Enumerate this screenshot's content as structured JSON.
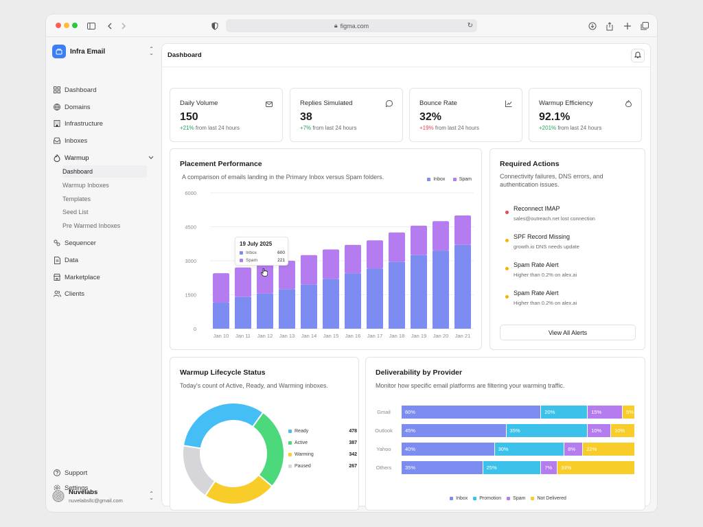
{
  "browser": {
    "url": "figma.com"
  },
  "brand": {
    "name": "Infra Email"
  },
  "nav": [
    {
      "label": "Dashboard",
      "icon": "grid-icon"
    },
    {
      "label": "Domains",
      "icon": "globe-icon"
    },
    {
      "label": "Infrastructure",
      "icon": "building-icon"
    },
    {
      "label": "Inboxes",
      "icon": "inbox-icon"
    },
    {
      "label": "Warmup",
      "icon": "flame-icon"
    }
  ],
  "warmup_sub": [
    "Dashboard",
    "Warmup Inboxes",
    "Templates",
    "Seed List",
    "Pre Warmed Inboxes"
  ],
  "nav2": [
    {
      "label": "Sequencer",
      "icon": "sequencer-icon"
    },
    {
      "label": "Data",
      "icon": "document-icon"
    },
    {
      "label": "Marketplace",
      "icon": "store-icon"
    },
    {
      "label": "Clients",
      "icon": "users-icon"
    }
  ],
  "footer_nav": [
    {
      "label": "Support",
      "icon": "help-icon"
    },
    {
      "label": "Settings",
      "icon": "gear-icon"
    }
  ],
  "user": {
    "name": "Nuvelabs",
    "email": "nuvelabsllc@gmail.com"
  },
  "header": {
    "title": "Dashboard"
  },
  "stats": [
    {
      "title": "Daily Volume",
      "value": "150",
      "delta": "+21%",
      "dir": "up",
      "suffix": "from last 24 hours",
      "icon": "mail-icon"
    },
    {
      "title": "Replies Simulated",
      "value": "38",
      "delta": "+7%",
      "dir": "up",
      "suffix": "from last 24 hours",
      "icon": "chat-icon"
    },
    {
      "title": "Bounce Rate",
      "value": "32%",
      "delta": "+19%",
      "dir": "down",
      "suffix": "from last 24 hours",
      "icon": "chart-icon"
    },
    {
      "title": "Warmup Efficiency",
      "value": "92.1%",
      "delta": "+201%",
      "dir": "up",
      "suffix": "from last 24 hours",
      "icon": "flame-icon"
    }
  ],
  "placement": {
    "title": "Placement Performance",
    "desc": "A comparison of emails landing in the Primary Inbox versus Spam folders.",
    "tooltip": {
      "date": "19 July 2025",
      "inbox_label": "Inbox",
      "inbox_value": "600",
      "spam_label": "Spam",
      "spam_value": "221"
    }
  },
  "actions": {
    "title": "Required Actions",
    "desc": "Connectivity failures, DNS errors, and authentication issues.",
    "items": [
      {
        "title": "Reconnect IMAP",
        "sub": "sales@outreach.net lost connection",
        "color": "#e5484d"
      },
      {
        "title": "SPF Record Missing",
        "sub": "growth.io DNS needs update",
        "color": "#f5b400"
      },
      {
        "title": "Spam Rate Alert",
        "sub": "Higher than 0.2% on alex.ai",
        "color": "#f5b400"
      },
      {
        "title": "Spam Rate Alert",
        "sub": "Higher than 0.2% on alex.ai",
        "color": "#f5b400"
      }
    ],
    "button": "View All Alerts"
  },
  "lifecycle": {
    "title": "Warmup Lifecycle Status",
    "desc": "Today's count of Active, Ready, and Warming inboxes."
  },
  "deliverability": {
    "title": "Deliverability by Provider",
    "desc": "Monitor how specific email platforms are filtering your warming traffic."
  },
  "colors": {
    "inbox": "#7d8cf0",
    "spam": "#b57cf0",
    "ready": "#45bdf5",
    "active": "#4cd97b",
    "warming": "#f8cd2a",
    "paused": "#d6d6da",
    "promotion": "#3cc2ea",
    "not_delivered": "#f8cd2a"
  },
  "chart_data": [
    {
      "type": "bar",
      "stacked": true,
      "categories": [
        "Jan 10",
        "Jan 11",
        "Jan 12",
        "Jan 13",
        "Jan 14",
        "Jan 15",
        "Jan 16",
        "Jan 17",
        "Jan 18",
        "Jan 19",
        "Jan 20",
        "Jan 21"
      ],
      "series": [
        {
          "name": "Inbox",
          "values": [
            1150,
            1400,
            1550,
            1750,
            1950,
            2200,
            2450,
            2650,
            2950,
            3250,
            3450,
            3700
          ]
        },
        {
          "name": "Spam",
          "values": [
            1300,
            1300,
            1300,
            1250,
            1300,
            1300,
            1250,
            1250,
            1300,
            1300,
            1300,
            1300
          ]
        }
      ],
      "ylim": [
        0,
        6000
      ],
      "yticks": [
        "0",
        "1500",
        "3000",
        "4500",
        "6000"
      ],
      "grid": true,
      "legend": "top-right"
    },
    {
      "type": "pie",
      "donut": true,
      "series": [
        {
          "name": "Ready",
          "value": 478
        },
        {
          "name": "Active",
          "value": 387
        },
        {
          "name": "Warming",
          "value": 342
        },
        {
          "name": "Paused",
          "value": 267
        }
      ],
      "legend": "right"
    },
    {
      "type": "bar",
      "orientation": "horizontal",
      "stacked": true,
      "categories": [
        "Gmail",
        "Outlook",
        "Yahoo",
        "Others"
      ],
      "series": [
        {
          "name": "Inbox",
          "values": [
            60,
            45,
            40,
            35
          ]
        },
        {
          "name": "Promotion",
          "values": [
            20,
            35,
            30,
            25
          ]
        },
        {
          "name": "Spam",
          "values": [
            15,
            10,
            8,
            7
          ]
        },
        {
          "name": "Not Delivered",
          "values": [
            5,
            10,
            22,
            33
          ]
        }
      ],
      "value_labels": [
        [
          "60%",
          "20%",
          "15%",
          "5%"
        ],
        [
          "45%",
          "35%",
          "10%",
          "10%"
        ],
        [
          "40%",
          "30%",
          "8%",
          "22%"
        ],
        [
          "35%",
          "25%",
          "7%",
          "33%"
        ]
      ],
      "legend": "bottom"
    }
  ]
}
